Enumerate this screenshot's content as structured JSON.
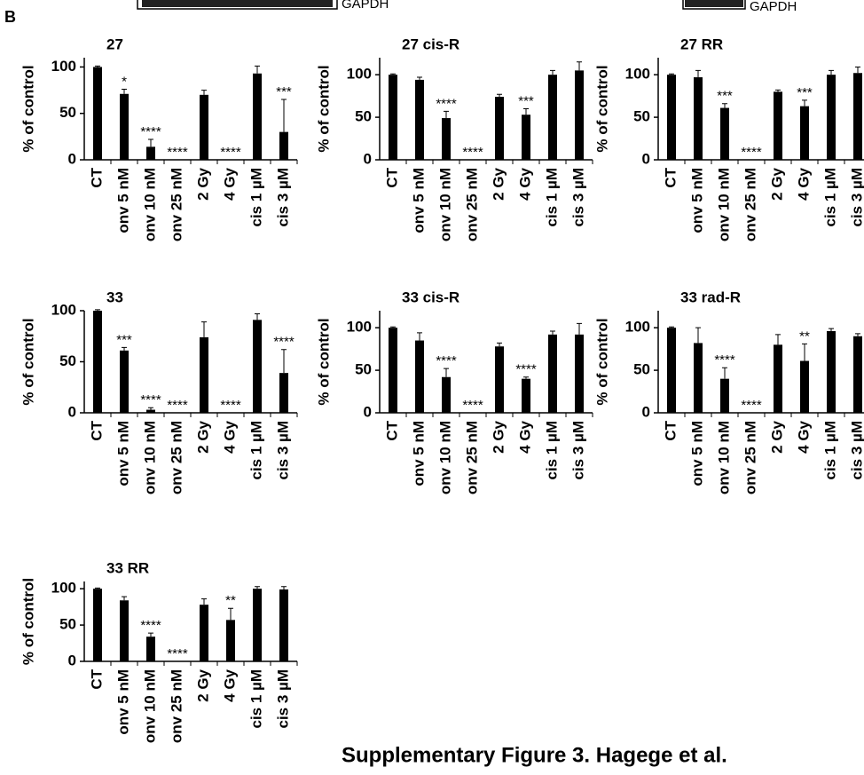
{
  "panel_label": "B",
  "blot_labels": [
    "GAPDH",
    "GAPDH"
  ],
  "caption": "Supplementary Figure 3. Hagege et al.",
  "chart_data": [
    {
      "type": "bar",
      "title": "27",
      "ylabel": "% of control",
      "color": "#000000",
      "categories": [
        "CT",
        "onv 5 nM",
        "onv 10 nM",
        "onv 25 nM",
        "2 Gy",
        "4 Gy",
        "cis 1 µM",
        "cis 3 µM"
      ],
      "values": [
        100,
        71,
        14,
        0,
        70,
        0,
        93,
        30
      ],
      "errors": [
        1,
        5,
        8,
        0,
        5,
        0,
        8,
        35
      ],
      "annotations": [
        null,
        "*",
        "****",
        "****",
        null,
        "****",
        null,
        "***"
      ],
      "ylim": [
        0,
        110
      ],
      "yticks": [
        0,
        50,
        100
      ]
    },
    {
      "type": "bar",
      "title": "27 cis-R",
      "ylabel": "% of control",
      "color": "#000000",
      "categories": [
        "CT",
        "onv 5 nM",
        "onv 10 nM",
        "onv 25 nM",
        "2 Gy",
        "4 Gy",
        "cis 1 µM",
        "cis 3 µM"
      ],
      "values": [
        100,
        94,
        49,
        0,
        74,
        53,
        100,
        105
      ],
      "errors": [
        1,
        3,
        8,
        0,
        3,
        7,
        5,
        10
      ],
      "annotations": [
        null,
        null,
        "****",
        "****",
        null,
        "***",
        null,
        null
      ],
      "ylim": [
        0,
        120
      ],
      "yticks": [
        0,
        50,
        100
      ]
    },
    {
      "type": "bar",
      "title": "27 RR",
      "ylabel": "% of control",
      "color": "#000000",
      "categories": [
        "CT",
        "onv 5 nM",
        "onv 10 nM",
        "onv 25 nM",
        "2 Gy",
        "4 Gy",
        "cis 1 µM",
        "cis 3 µM"
      ],
      "values": [
        100,
        97,
        61,
        0,
        80,
        63,
        100,
        102
      ],
      "errors": [
        1,
        8,
        5,
        0,
        2,
        7,
        5,
        7
      ],
      "annotations": [
        null,
        null,
        "***",
        "****",
        null,
        "***",
        null,
        null
      ],
      "ylim": [
        0,
        120
      ],
      "yticks": [
        0,
        50,
        100
      ]
    },
    {
      "type": "bar",
      "title": "33",
      "ylabel": "% of control",
      "color": "#000000",
      "categories": [
        "CT",
        "onv 5 nM",
        "onv 10 nM",
        "onv 25 nM",
        "2 Gy",
        "4 Gy",
        "cis 1 µM",
        "cis 3 µM"
      ],
      "values": [
        100,
        61,
        3,
        0,
        74,
        0,
        91,
        39
      ],
      "errors": [
        1,
        3,
        2,
        0,
        15,
        0,
        6,
        23
      ],
      "annotations": [
        null,
        "***",
        "****",
        "****",
        null,
        "****",
        null,
        "****"
      ],
      "ylim": [
        0,
        100
      ],
      "yticks": [
        0,
        50,
        100
      ]
    },
    {
      "type": "bar",
      "title": "33 cis-R",
      "ylabel": "% of control",
      "color": "#000000",
      "categories": [
        "CT",
        "onv 5 nM",
        "onv 10 nM",
        "onv 25 nM",
        "2 Gy",
        "4 Gy",
        "cis 1 µM",
        "cis 3 µM"
      ],
      "values": [
        100,
        85,
        42,
        0,
        78,
        40,
        92,
        92
      ],
      "errors": [
        1,
        9,
        10,
        0,
        4,
        2,
        4,
        13
      ],
      "annotations": [
        null,
        null,
        "****",
        "****",
        null,
        "****",
        null,
        null
      ],
      "ylim": [
        0,
        120
      ],
      "yticks": [
        0,
        50,
        100
      ]
    },
    {
      "type": "bar",
      "title": "33 rad-R",
      "ylabel": "% of control",
      "color": "#000000",
      "categories": [
        "CT",
        "onv 5 nM",
        "onv 10 nM",
        "onv 25 nM",
        "2 Gy",
        "4 Gy",
        "cis 1 µM",
        "cis 3 µM"
      ],
      "values": [
        100,
        82,
        40,
        0,
        80,
        61,
        96,
        90
      ],
      "errors": [
        1,
        18,
        13,
        0,
        12,
        20,
        3,
        3
      ],
      "annotations": [
        null,
        null,
        "****",
        "****",
        null,
        "**",
        null,
        null
      ],
      "ylim": [
        0,
        120
      ],
      "yticks": [
        0,
        50,
        100
      ]
    },
    {
      "type": "bar",
      "title": "33 RR",
      "ylabel": "% of control",
      "color": "#000000",
      "categories": [
        "CT",
        "onv 5 nM",
        "onv 10 nM",
        "onv 25 nM",
        "2 Gy",
        "4 Gy",
        "cis 1 µM",
        "cis 3 µM"
      ],
      "values": [
        100,
        84,
        34,
        0,
        78,
        57,
        100,
        99
      ],
      "errors": [
        1,
        5,
        5,
        0,
        8,
        16,
        3,
        4
      ],
      "annotations": [
        null,
        null,
        "****",
        "****",
        null,
        "**",
        null,
        null
      ],
      "ylim": [
        0,
        110
      ],
      "yticks": [
        0,
        50,
        100
      ]
    }
  ]
}
